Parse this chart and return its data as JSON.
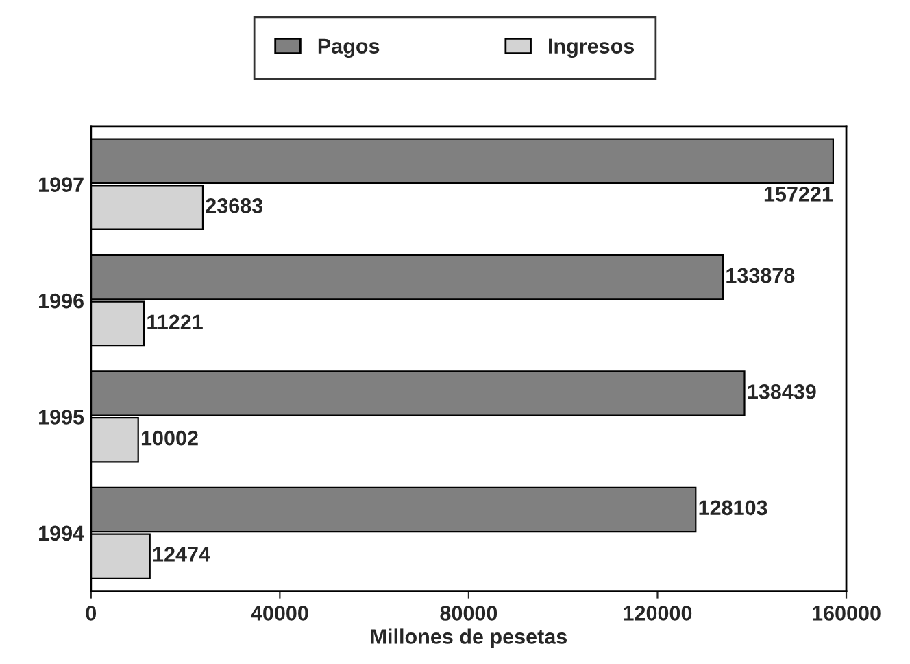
{
  "chart_data": {
    "type": "bar",
    "orientation": "horizontal",
    "categories": [
      "1997",
      "1996",
      "1995",
      "1994"
    ],
    "series": [
      {
        "name": "Pagos",
        "color": "#808080",
        "values": [
          157221,
          133878,
          138439,
          128103
        ]
      },
      {
        "name": "Ingresos",
        "color": "#d3d3d3",
        "values": [
          23683,
          11221,
          10002,
          12474
        ]
      }
    ],
    "xlabel": "Millones de pesetas",
    "xlim": [
      0,
      160000
    ],
    "xticks": [
      0,
      40000,
      80000,
      120000,
      160000
    ],
    "data_labels": true,
    "legend": "top",
    "grid": false
  }
}
